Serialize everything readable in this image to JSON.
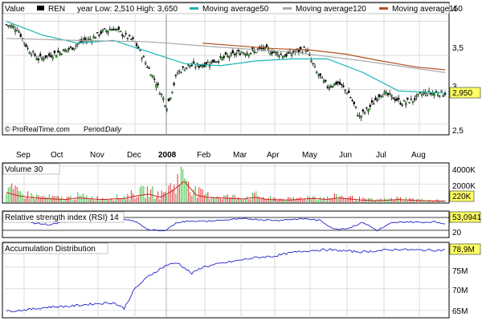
{
  "header": {
    "value_label": "Value",
    "ticker": "REN",
    "range_text": "year Low: 2,510 High: 3,650",
    "ma50_label": "Moving average50",
    "ma120_label": "Moving average120",
    "ma_other_label": "Moving average150"
  },
  "watermark": "© ProRealTime.com",
  "period_label": "Period:",
  "period_value": "Daily",
  "colors": {
    "ma50": "#19b4b4",
    "ma120": "#a8a8a8",
    "ma_other": "#b4501e",
    "volume_up": "#33bb33",
    "volume_down": "#dd3333",
    "volume_avg": "#cc2222",
    "indicator": "#2222cc",
    "label_box": "#ffff66",
    "grid": "#c8c8c8"
  },
  "months": [
    "Sep",
    "Oct",
    "Nov",
    "Dec",
    "2008",
    "Feb",
    "Mar",
    "Apr",
    "May",
    "Jun",
    "Jul",
    "Aug"
  ],
  "price_panel": {
    "y_ticks": [
      "4",
      "3,5",
      "3",
      "2,5"
    ],
    "last_value": "2,950"
  },
  "volume_panel": {
    "title": "Volume 30",
    "y_ticks": [
      "4000K",
      "2000K"
    ],
    "last_value": "220K"
  },
  "rsi_panel": {
    "title": "Relative strength index (RSI) 14",
    "y_ticks": [
      "20"
    ],
    "last_value": "53,0941"
  },
  "ad_panel": {
    "title": "Accumulation Distribution",
    "y_ticks": [
      "75M",
      "70M",
      "65M"
    ],
    "last_value": "78,9M"
  },
  "chart_data": [
    {
      "type": "candlestick",
      "title": "REN",
      "x_labels": [
        "Sep",
        "Oct",
        "Nov",
        "Dec",
        "2008",
        "Feb",
        "Mar",
        "Apr",
        "May",
        "Jun",
        "Jul",
        "Aug"
      ],
      "ylim": [
        2.35,
        4.1
      ],
      "grid": true,
      "series": [
        {
          "name": "REN",
          "x": [
            0,
            6,
            12,
            18,
            24,
            30,
            36,
            42,
            48,
            54,
            60,
            66,
            72,
            78,
            84,
            90,
            96,
            102,
            108,
            114,
            120,
            126,
            132,
            138,
            144,
            150,
            156,
            162,
            168,
            174,
            180,
            186,
            192,
            198,
            204,
            210,
            216,
            222,
            228,
            234,
            240,
            246
          ],
          "y": [
            3.95,
            3.9,
            3.6,
            3.45,
            3.5,
            3.55,
            3.6,
            3.7,
            3.75,
            3.85,
            3.9,
            3.8,
            3.7,
            3.4,
            3.1,
            2.75,
            3.25,
            3.35,
            3.35,
            3.4,
            3.45,
            3.5,
            3.55,
            3.55,
            3.6,
            3.55,
            3.5,
            3.55,
            3.6,
            3.25,
            3.05,
            3.1,
            2.95,
            2.6,
            2.75,
            2.95,
            2.9,
            2.8,
            2.85,
            2.95,
            2.95,
            2.95
          ]
        },
        {
          "name": "Moving average50",
          "x": [
            0,
            20,
            40,
            60,
            80,
            100,
            120,
            140,
            160,
            180,
            200,
            220,
            246
          ],
          "y": [
            4.0,
            3.8,
            3.68,
            3.72,
            3.55,
            3.38,
            3.35,
            3.42,
            3.45,
            3.45,
            3.25,
            2.98,
            2.95
          ]
        },
        {
          "name": "Moving average120",
          "x": [
            0,
            40,
            80,
            120,
            160,
            200,
            246
          ],
          "y": [
            3.75,
            3.72,
            3.7,
            3.62,
            3.55,
            3.42,
            3.25
          ]
        },
        {
          "name": "Moving average150",
          "x": [
            110,
            130,
            150,
            170,
            190,
            210,
            230,
            246
          ],
          "y": [
            3.68,
            3.64,
            3.6,
            3.58,
            3.52,
            3.42,
            3.33,
            3.29
          ]
        }
      ]
    },
    {
      "type": "bar",
      "title": "Volume 30",
      "ylim": [
        0,
        4000
      ],
      "ylabel_unit": "K",
      "series": [
        {
          "name": "Volume",
          "values": [
            1800,
            1200,
            900,
            700,
            600,
            500,
            800,
            650,
            500,
            600,
            700,
            1200,
            1500,
            900,
            2100,
            3900,
            1300,
            900,
            800,
            700,
            600,
            900,
            500,
            450,
            400,
            600,
            700,
            500,
            800,
            600,
            400,
            300,
            350,
            500,
            400,
            300,
            250,
            220
          ]
        }
      ]
    },
    {
      "type": "line",
      "title": "Relative strength index (RSI) 14",
      "ylim": [
        0,
        100
      ],
      "series": [
        {
          "name": "RSI",
          "x": [
            0,
            8,
            16,
            24,
            32,
            40,
            48,
            56,
            64,
            72,
            80,
            88,
            96,
            104,
            112,
            120,
            128,
            136,
            144,
            152,
            160,
            168,
            176,
            184,
            192,
            200,
            208,
            216,
            224,
            232,
            240,
            246
          ],
          "y": [
            68,
            62,
            55,
            48,
            58,
            64,
            60,
            66,
            70,
            62,
            28,
            22,
            58,
            64,
            62,
            66,
            70,
            72,
            68,
            66,
            70,
            72,
            65,
            30,
            35,
            58,
            25,
            55,
            60,
            58,
            60,
            53
          ]
        }
      ]
    },
    {
      "type": "line",
      "title": "Accumulation Distribution",
      "ylim": [
        63.5,
        80.5
      ],
      "ylabel_unit": "M",
      "series": [
        {
          "name": "Accumulation Distribution",
          "x": [
            0,
            12,
            24,
            36,
            48,
            60,
            66,
            72,
            80,
            90,
            96,
            104,
            110,
            120,
            130,
            140,
            150,
            160,
            170,
            180,
            190,
            200,
            210,
            220,
            230,
            246
          ],
          "y": [
            64.8,
            65.2,
            65.8,
            66.0,
            66.5,
            66.8,
            65.5,
            70.0,
            73.0,
            75.5,
            76.0,
            73.5,
            75.0,
            75.8,
            76.5,
            77.2,
            77.5,
            78.3,
            78.8,
            79.0,
            78.7,
            78.5,
            78.8,
            79.1,
            78.9,
            78.9
          ]
        }
      ]
    }
  ]
}
